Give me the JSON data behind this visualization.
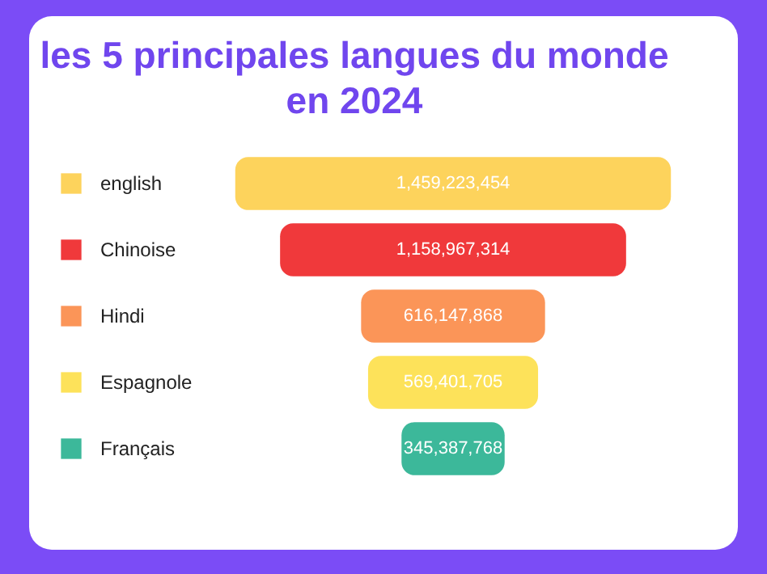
{
  "chart_data": {
    "type": "other",
    "title": "les 5 principales langues du monde en 2024",
    "categories": [
      "english",
      "Chinoise",
      "Hindi",
      "Espagnole",
      "Français"
    ],
    "values": [
      1459223454,
      1158967314,
      616147868,
      569401705,
      345387768
    ],
    "colors": [
      "#fdd35c",
      "#f0393b",
      "#fb9558",
      "#fde25a",
      "#3cb89a"
    ],
    "value_labels": [
      "1,459,223,454",
      "1,158,967,314",
      "616,147,868",
      "569,401,705",
      "345,387,768"
    ]
  }
}
